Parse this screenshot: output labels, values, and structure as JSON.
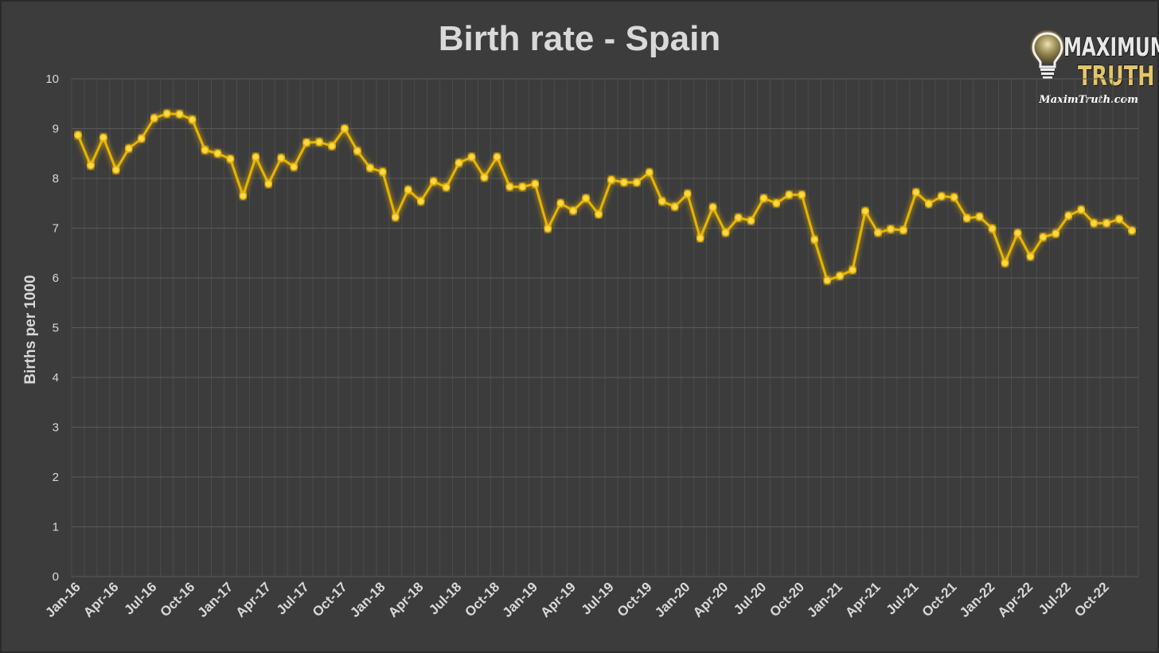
{
  "chart_data": {
    "type": "line",
    "title": "Birth rate - Spain",
    "ylabel": "Births per 1000",
    "xlabel": "",
    "ylim": [
      0,
      10
    ],
    "yticks": [
      0,
      1,
      2,
      3,
      4,
      5,
      6,
      7,
      8,
      9,
      10
    ],
    "grid": true,
    "xtick_labels": [
      "Jan-16",
      "Apr-16",
      "Jul-16",
      "Oct-16",
      "Jan-17",
      "Apr-17",
      "Jul-17",
      "Oct-17",
      "Jan-18",
      "Apr-18",
      "Jul-18",
      "Oct-18",
      "Jan-19",
      "Apr-19",
      "Jul-19",
      "Oct-19",
      "Jan-20",
      "Apr-20",
      "Jul-20",
      "Oct-20",
      "Jan-21",
      "Apr-21",
      "Jul-21",
      "Oct-21",
      "Jan-22",
      "Apr-22",
      "Jul-22",
      "Oct-22"
    ],
    "x": [
      "Jan-16",
      "Feb-16",
      "Mar-16",
      "Apr-16",
      "May-16",
      "Jun-16",
      "Jul-16",
      "Aug-16",
      "Sep-16",
      "Oct-16",
      "Nov-16",
      "Dec-16",
      "Jan-17",
      "Feb-17",
      "Mar-17",
      "Apr-17",
      "May-17",
      "Jun-17",
      "Jul-17",
      "Aug-17",
      "Sep-17",
      "Oct-17",
      "Nov-17",
      "Dec-17",
      "Jan-18",
      "Feb-18",
      "Mar-18",
      "Apr-18",
      "May-18",
      "Jun-18",
      "Jul-18",
      "Aug-18",
      "Sep-18",
      "Oct-18",
      "Nov-18",
      "Dec-18",
      "Jan-19",
      "Feb-19",
      "Mar-19",
      "Apr-19",
      "May-19",
      "Jun-19",
      "Jul-19",
      "Aug-19",
      "Sep-19",
      "Oct-19",
      "Nov-19",
      "Dec-19",
      "Jan-20",
      "Feb-20",
      "Mar-20",
      "Apr-20",
      "May-20",
      "Jun-20",
      "Jul-20",
      "Aug-20",
      "Sep-20",
      "Oct-20",
      "Nov-20",
      "Dec-20",
      "Jan-21",
      "Feb-21",
      "Mar-21",
      "Apr-21",
      "May-21",
      "Jun-21",
      "Jul-21",
      "Aug-21",
      "Sep-21",
      "Oct-21",
      "Nov-21",
      "Dec-21",
      "Jan-22",
      "Feb-22",
      "Mar-22",
      "Apr-22",
      "May-22",
      "Jun-22",
      "Jul-22",
      "Aug-22",
      "Sep-22",
      "Oct-22",
      "Nov-22",
      "Dec-22"
    ],
    "series": [
      {
        "color": "#e8b400",
        "values": [
          8.87,
          8.26,
          8.82,
          8.17,
          8.6,
          8.8,
          9.21,
          9.3,
          9.29,
          9.18,
          8.57,
          8.5,
          8.39,
          7.65,
          8.43,
          7.89,
          8.41,
          8.23,
          8.72,
          8.73,
          8.65,
          9.0,
          8.55,
          8.21,
          8.13,
          7.22,
          7.77,
          7.54,
          7.94,
          7.82,
          8.31,
          8.43,
          8.02,
          8.43,
          7.83,
          7.83,
          7.89,
          6.99,
          7.5,
          7.35,
          7.6,
          7.28,
          7.97,
          7.92,
          7.92,
          8.12,
          7.54,
          7.43,
          7.69,
          6.8,
          7.42,
          6.91,
          7.21,
          7.15,
          7.6,
          7.5,
          7.67,
          7.67,
          6.77,
          5.95,
          6.04,
          6.16,
          7.34,
          6.91,
          6.98,
          6.96,
          7.72,
          7.49,
          7.64,
          7.62,
          7.2,
          7.23,
          6.99,
          6.3,
          6.9,
          6.43,
          6.82,
          6.89,
          7.25,
          7.37,
          7.1,
          7.1,
          7.18,
          6.95
        ]
      }
    ]
  },
  "logo": {
    "line1": "MAXIMUM",
    "line2": "TRUTH",
    "url": "MaximTruth.com"
  }
}
